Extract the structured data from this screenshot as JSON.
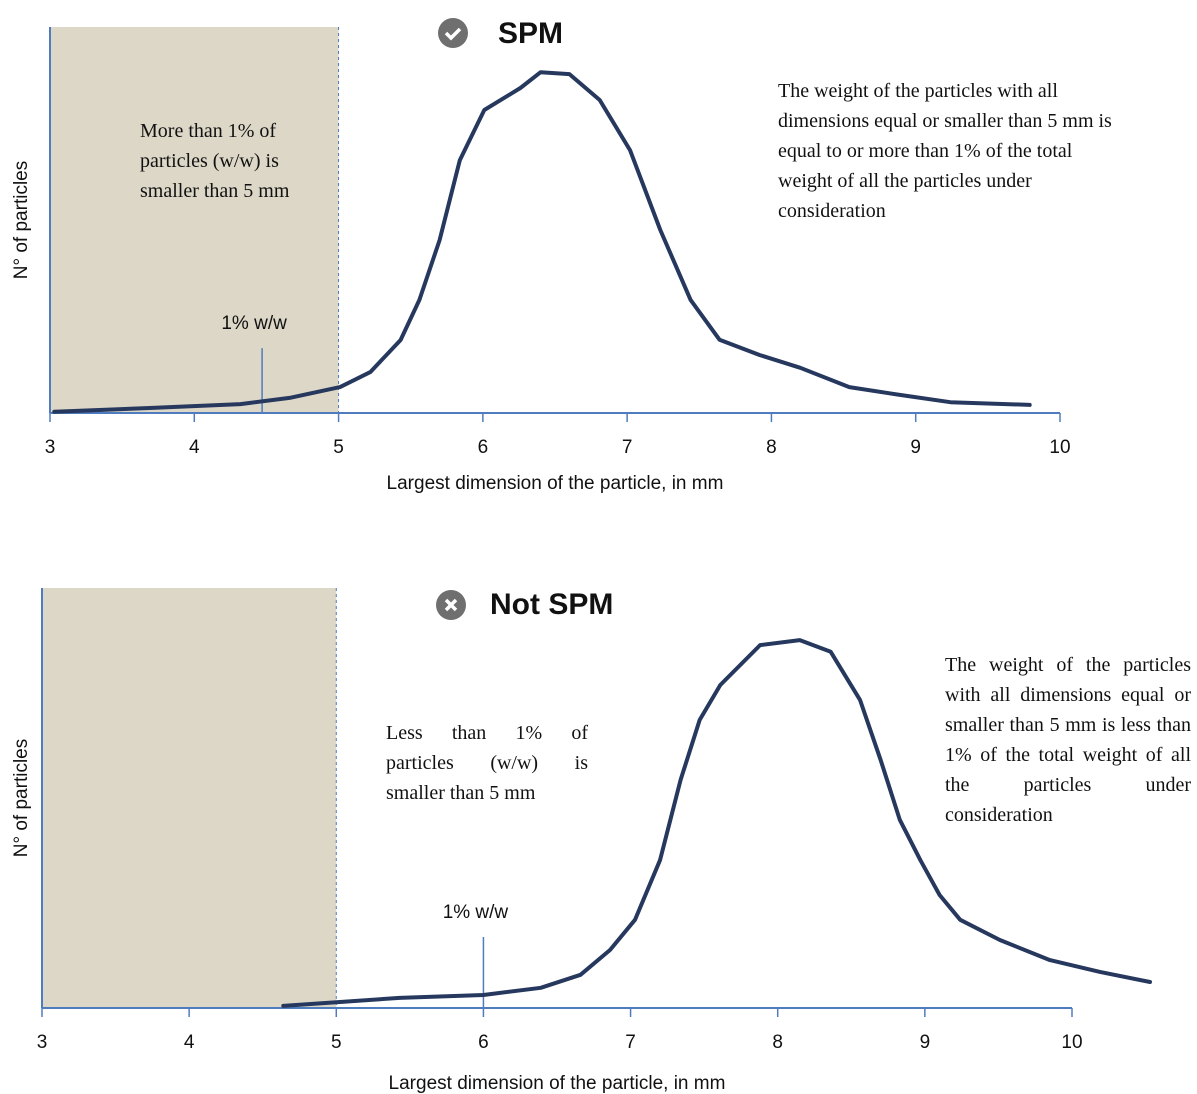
{
  "chart_data": [
    {
      "type": "line",
      "title": "SPM",
      "status": "check",
      "x_label": "Largest dimension of the particle, in mm",
      "y_label": "N° of particles",
      "xlim": [
        3,
        10
      ],
      "xticks": [
        3,
        4,
        5,
        6,
        7,
        8,
        9,
        10
      ],
      "ylim": [
        0,
        100
      ],
      "shade": [
        3,
        5
      ],
      "marker": {
        "x": 4.47,
        "top": 16.8,
        "label": "1% w/w"
      },
      "annotations": [
        "More than 1% of particles (w/w) is smaller than 5 mm",
        "The weight of the particles with all dimensions equal or smaller than 5 mm is equal to or more than 1% of the total weight of all the particles under consideration"
      ],
      "series": [
        {
          "color": "#27385e",
          "x": [
            3.03,
            3.69,
            4.32,
            4.66,
            5.01,
            5.22,
            5.43,
            5.56,
            5.7,
            5.84,
            6.01,
            6.26,
            6.4,
            6.6,
            6.81,
            7.02,
            7.23,
            7.44,
            7.64,
            7.92,
            8.2,
            8.54,
            8.89,
            9.24,
            9.79
          ],
          "values": [
            0.3,
            1.3,
            2.3,
            3.9,
            6.7,
            10.6,
            18.9,
            29.3,
            44.8,
            65.5,
            78.5,
            84.2,
            88.3,
            87.8,
            81.1,
            68.1,
            47.4,
            29.3,
            19.0,
            15.0,
            11.7,
            6.7,
            4.7,
            2.8,
            2.1
          ]
        }
      ]
    },
    {
      "type": "line",
      "title": "Not SPM",
      "status": "cross",
      "x_label": "Largest dimension of the particle, in mm",
      "y_label": "N° of particles",
      "xlim": [
        3,
        10
      ],
      "xticks": [
        3,
        4,
        5,
        6,
        7,
        8,
        9,
        10
      ],
      "ylim": [
        0,
        100
      ],
      "shade": [
        3,
        5
      ],
      "marker": {
        "x": 6.0,
        "top": 16.9,
        "label": "1% w/w"
      },
      "annotations": [
        "Less than 1% of particles (w/w) is smaller than 5 mm",
        "The weight of the particles with all dimensions equal or smaller than 5 mm is less than 1% of the total weight of all the particles under consideration"
      ],
      "series": [
        {
          "color": "#27385e",
          "x": [
            4.64,
            5.43,
            6.0,
            6.39,
            6.66,
            6.86,
            7.03,
            7.2,
            7.34,
            7.47,
            7.61,
            7.88,
            8.15,
            8.36,
            8.56,
            8.7,
            8.83,
            8.97,
            9.1,
            9.24,
            9.51,
            9.85,
            10.19,
            10.53
          ],
          "values": [
            0.5,
            2.4,
            3.1,
            4.8,
            7.9,
            13.8,
            21.0,
            35.2,
            54.3,
            68.6,
            76.9,
            86.4,
            87.6,
            84.8,
            73.3,
            59.0,
            44.8,
            35.2,
            26.9,
            21.0,
            16.2,
            11.4,
            8.6,
            6.2
          ]
        }
      ]
    }
  ]
}
